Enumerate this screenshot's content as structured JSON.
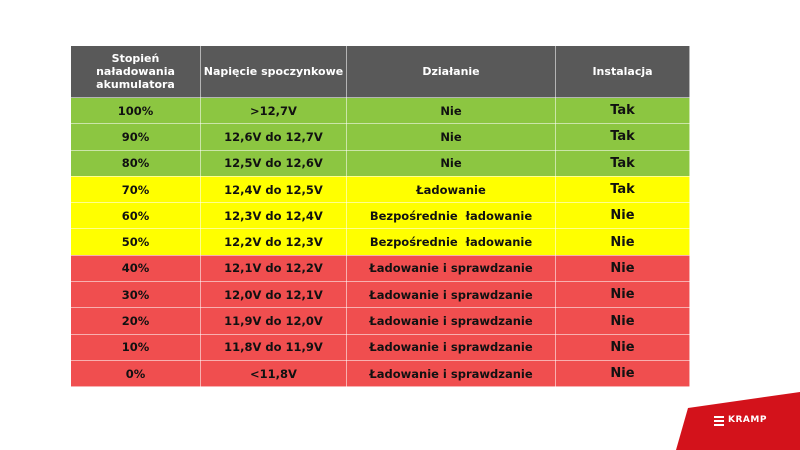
{
  "colors": {
    "header": "#595959",
    "green": "#8cc641",
    "yellow": "#ffff00",
    "red": "#f04e4f",
    "brand": "#d3121b"
  },
  "headers": [
    "Stopień naładowania akumulatora",
    "Napięcie spoczynkowe",
    "Działanie",
    "Instalacja"
  ],
  "rows": [
    {
      "level": "green",
      "charge": "100%",
      "voltage": ">12,7V",
      "action": "Nie",
      "install": "Tak"
    },
    {
      "level": "green",
      "charge": "90%",
      "voltage": "12,6V do 12,7V",
      "action": "Nie",
      "install": "Tak"
    },
    {
      "level": "green",
      "charge": "80%",
      "voltage": "12,5V do 12,6V",
      "action": "Nie",
      "install": "Tak"
    },
    {
      "level": "yellow",
      "charge": "70%",
      "voltage": "12,4V do 12,5V",
      "action": "Ładowanie",
      "install": "Tak"
    },
    {
      "level": "yellow",
      "charge": "60%",
      "voltage": "12,3V do 12,4V",
      "action": "Bezpośrednie  ładowanie",
      "install": "Nie"
    },
    {
      "level": "yellow",
      "charge": "50%",
      "voltage": "12,2V do 12,3V",
      "action": "Bezpośrednie  ładowanie",
      "install": "Nie"
    },
    {
      "level": "red",
      "charge": "40%",
      "voltage": "12,1V do 12,2V",
      "action": "Ładowanie i sprawdzanie",
      "install": "Nie"
    },
    {
      "level": "red",
      "charge": "30%",
      "voltage": "12,0V do 12,1V",
      "action": "Ładowanie i sprawdzanie",
      "install": "Nie"
    },
    {
      "level": "red",
      "charge": "20%",
      "voltage": "11,9V do 12,0V",
      "action": "Ładowanie i sprawdzanie",
      "install": "Nie"
    },
    {
      "level": "red",
      "charge": "10%",
      "voltage": "11,8V do 11,9V",
      "action": "Ładowanie i sprawdzanie",
      "install": "Nie"
    },
    {
      "level": "red",
      "charge": "0%",
      "voltage": "<11,8V",
      "action": "Ładowanie i sprawdzanie",
      "install": "Nie"
    }
  ],
  "logo": {
    "text": "KRAMP"
  }
}
